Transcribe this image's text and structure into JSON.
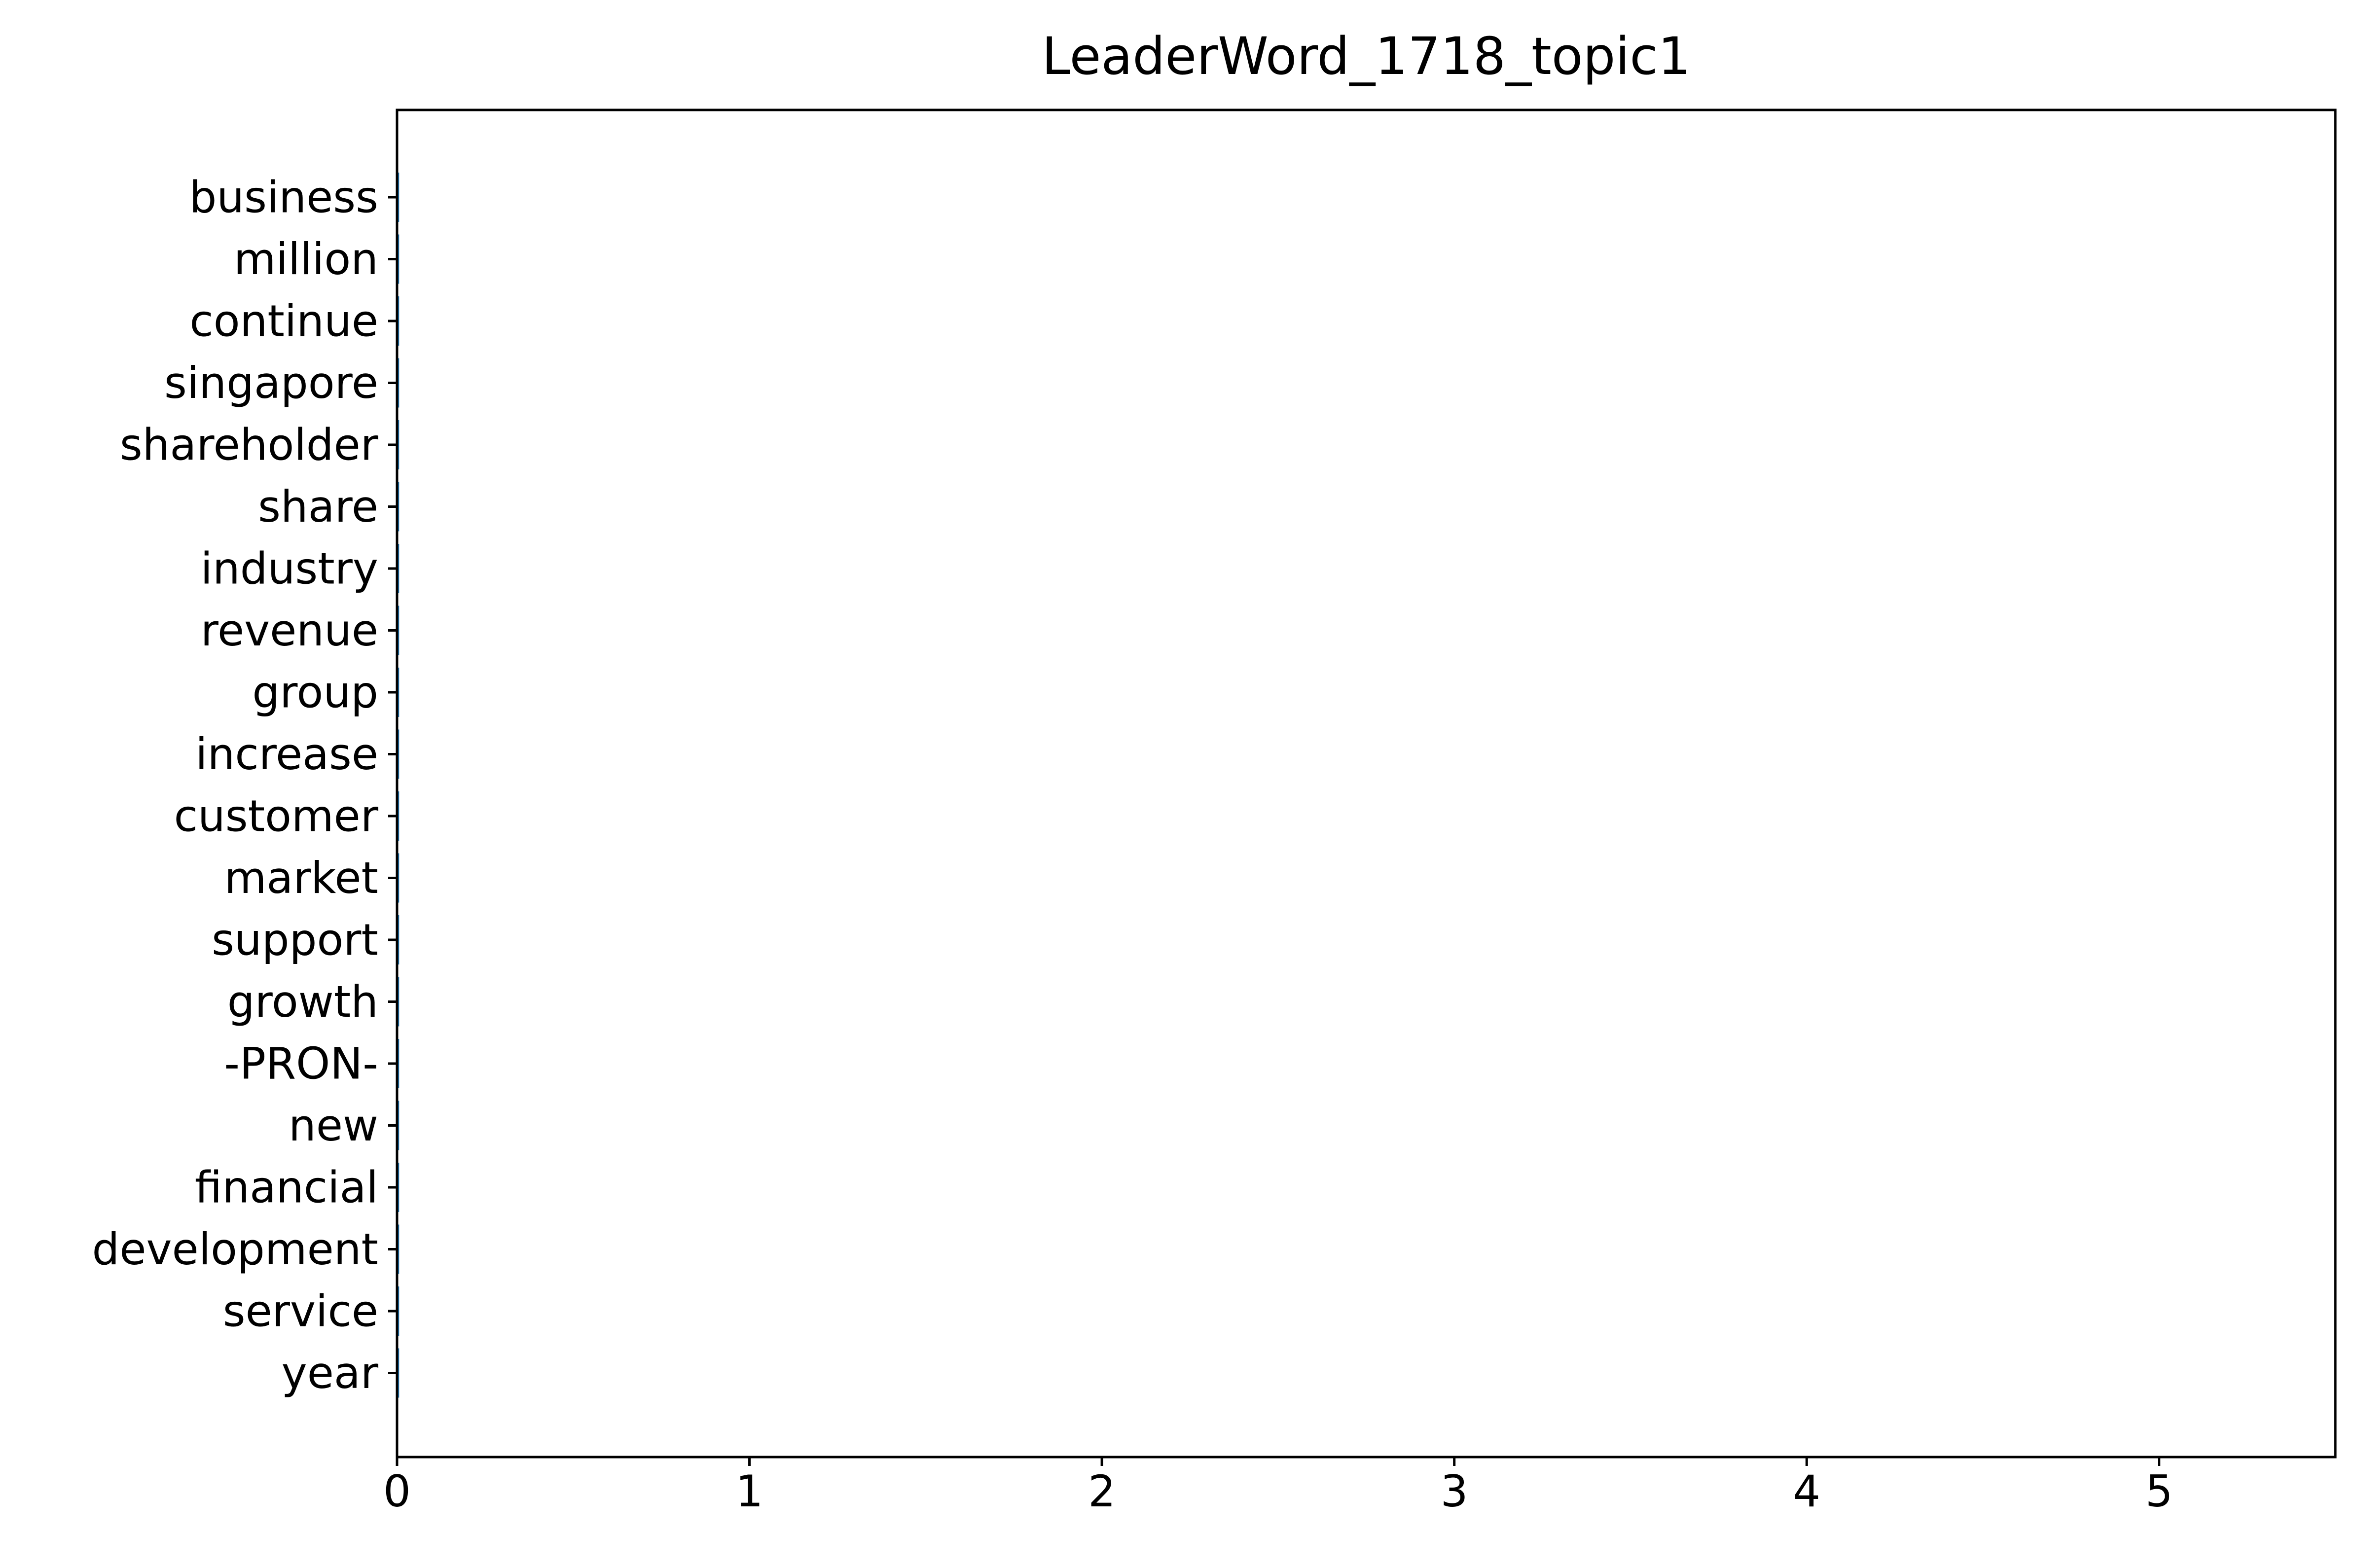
{
  "chart_data": {
    "type": "bar",
    "orientation": "horizontal",
    "title": "LeaderWord_1718_topic1",
    "xlabel": "",
    "ylabel": "",
    "categories": [
      "business",
      "million",
      "continue",
      "singapore",
      "shareholder",
      "share",
      "industry",
      "revenue",
      "group",
      "increase",
      "customer",
      "market",
      "support",
      "growth",
      "-PRON-",
      "new",
      "financial",
      "development",
      "service",
      "year"
    ],
    "values": [
      0.006,
      0.006,
      0.006,
      0.006,
      0.006,
      0.006,
      0.006,
      0.006,
      0.006,
      0.006,
      0.006,
      0.006,
      0.006,
      0.006,
      0.006,
      0.006,
      0.006,
      0.006,
      0.006,
      0.006
    ],
    "xlim": [
      0,
      5.5
    ],
    "xticks": [
      0,
      1,
      2,
      3,
      4,
      5
    ],
    "xtick_labels": [
      "0",
      "1",
      "2",
      "3",
      "4",
      "5"
    ],
    "grid": false,
    "bar_color": "#1f77b4"
  }
}
